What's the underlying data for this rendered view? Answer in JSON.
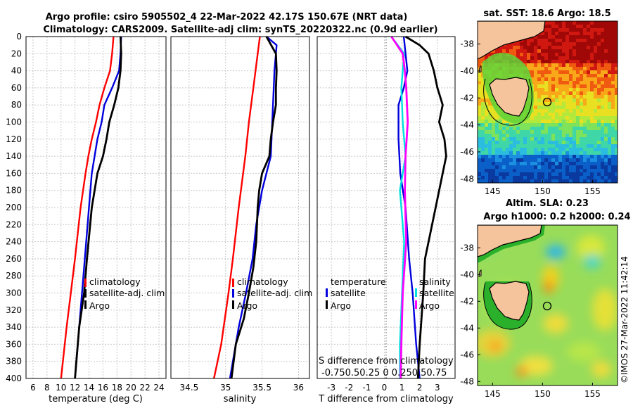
{
  "title": {
    "line1": "Argo profile: csiro 5905502_4 22-Mar-2022 42.17S 150.67E (NRT data)",
    "line2": "Climatology: CARS2009. Satellite-adj clim: synTS_20220322.nc (0.9d earlier)"
  },
  "watermark": "©IMOS 27-Mar-2022 11:42:14",
  "colors": {
    "climatology": "#ff0000",
    "satellite": "#0000dd",
    "argo": "#000000",
    "salinity_diff": "#ff00ff",
    "temperature_diff": "#00e0e0"
  },
  "chart_data": [
    {
      "id": "temperature",
      "type": "line",
      "xlabel": "temperature (deg C)",
      "xlim": [
        5,
        25
      ],
      "ylim": [
        0,
        400
      ],
      "xticks": [
        6,
        8,
        10,
        12,
        14,
        16,
        18,
        20,
        22,
        24
      ],
      "yticks": [
        0,
        20,
        40,
        60,
        80,
        100,
        120,
        140,
        160,
        180,
        200,
        220,
        240,
        260,
        280,
        300,
        320,
        340,
        360,
        380,
        400
      ],
      "legend": [
        "climatology",
        "satellite-adj. clim",
        "Argo"
      ],
      "series": [
        {
          "name": "climatology",
          "depth": [
            0,
            20,
            40,
            60,
            80,
            100,
            120,
            140,
            160,
            200,
            260,
            300,
            340,
            400
          ],
          "values": [
            17.5,
            17.3,
            17.0,
            16.2,
            15.5,
            15.0,
            14.4,
            13.9,
            13.5,
            12.8,
            12.0,
            11.4,
            10.8,
            10.0
          ]
        },
        {
          "name": "satellite-adj. clim",
          "depth": [
            0,
            20,
            40,
            60,
            80,
            100,
            120,
            140,
            160,
            200,
            260,
            300,
            340,
            400
          ],
          "values": [
            18.6,
            18.5,
            18.3,
            17.3,
            16.2,
            15.8,
            15.2,
            14.8,
            14.4,
            14.0,
            13.4,
            13.0,
            12.6,
            12.0
          ]
        },
        {
          "name": "Argo",
          "depth": [
            0,
            20,
            40,
            60,
            80,
            100,
            120,
            140,
            160,
            200,
            260,
            300,
            340,
            400
          ],
          "values": [
            18.5,
            18.6,
            18.5,
            18.2,
            17.6,
            16.9,
            16.5,
            16.0,
            15.2,
            14.4,
            13.7,
            13.3,
            12.6,
            12.0
          ]
        }
      ]
    },
    {
      "id": "salinity",
      "type": "line",
      "xlabel": "salinity",
      "xlim": [
        34.25,
        36.15
      ],
      "ylim": [
        0,
        400
      ],
      "xticks": [
        34.5,
        35,
        35.5,
        36
      ],
      "legend": [
        "climatology",
        "satellite-adj. clim",
        "Argo"
      ],
      "series": [
        {
          "name": "climatology",
          "depth": [
            0,
            20,
            40,
            60,
            100,
            140,
            200,
            260,
            300,
            360,
            400
          ],
          "values": [
            35.47,
            35.44,
            35.41,
            35.38,
            35.32,
            35.27,
            35.18,
            35.1,
            35.04,
            34.94,
            34.84
          ]
        },
        {
          "name": "satellite-adj. clim",
          "depth": [
            0,
            10,
            20,
            40,
            60,
            100,
            140,
            180,
            220,
            260,
            300,
            340,
            380,
            400
          ],
          "values": [
            35.56,
            35.7,
            35.69,
            35.67,
            35.66,
            35.64,
            35.62,
            35.5,
            35.42,
            35.37,
            35.28,
            35.18,
            35.1,
            35.06
          ]
        },
        {
          "name": "Argo",
          "depth": [
            0,
            20,
            40,
            60,
            80,
            100,
            120,
            140,
            160,
            180,
            200,
            240,
            270,
            300,
            330,
            360,
            400
          ],
          "values": [
            35.56,
            35.69,
            35.7,
            35.69,
            35.69,
            35.65,
            35.62,
            35.6,
            35.5,
            35.46,
            35.44,
            35.42,
            35.38,
            35.32,
            35.25,
            35.14,
            35.08
          ]
        }
      ]
    },
    {
      "id": "difference",
      "type": "line",
      "xlabel": "T difference from climatology",
      "xlabel_top": "S difference from climatology",
      "xlim": [
        -3.8,
        4.0
      ],
      "xlim_salinity": [
        -0.95,
        1.0
      ],
      "ylim": [
        0,
        400
      ],
      "xticks": [
        -3,
        -2,
        -1,
        0,
        1,
        2,
        3
      ],
      "xtick_labels_top": "-0.750.50.25 0  0.250.50.75",
      "legend_left_title": "temperature",
      "legend_left": [
        "satellite",
        "Argo"
      ],
      "legend_right_title": "salinity",
      "legend_right": [
        "satellite",
        "Argo"
      ],
      "series": [
        {
          "name": "temperature satellite",
          "depth": [
            0,
            20,
            40,
            60,
            80,
            120,
            160,
            200,
            260,
            300,
            360,
            400
          ],
          "values": [
            1.1,
            1.2,
            1.3,
            1.1,
            0.8,
            0.8,
            0.9,
            1.2,
            1.4,
            1.6,
            1.8,
            2.0
          ]
        },
        {
          "name": "temperature Argo",
          "depth": [
            0,
            10,
            20,
            40,
            60,
            80,
            100,
            120,
            140,
            160,
            200,
            260,
            300,
            360,
            400
          ],
          "values": [
            1.2,
            2.0,
            2.5,
            2.8,
            3.0,
            3.3,
            3.1,
            3.4,
            3.5,
            3.3,
            2.9,
            2.3,
            2.2,
            2.0,
            1.9
          ]
        },
        {
          "name": "salinity satellite",
          "depth": [
            0,
            20,
            40,
            60,
            100,
            140,
            180,
            240,
            300,
            360,
            400
          ],
          "values": [
            0.1,
            0.28,
            0.26,
            0.24,
            0.26,
            0.3,
            0.22,
            0.28,
            0.25,
            0.22,
            0.22
          ]
        },
        {
          "name": "salinity Argo",
          "depth": [
            0,
            20,
            40,
            60,
            100,
            140,
            180,
            240,
            300,
            360,
            400
          ],
          "values": [
            0.1,
            0.26,
            0.29,
            0.31,
            0.33,
            0.3,
            0.29,
            0.31,
            0.26,
            0.24,
            0.23
          ]
        }
      ]
    },
    {
      "id": "sst_map",
      "type": "heatmap",
      "title": "sat. SST: 18.6 Argo: 18.5",
      "xlim": [
        143.5,
        157.5
      ],
      "ylim": [
        -48.3,
        -36.3
      ],
      "xticks": [
        145,
        150,
        155
      ],
      "yticks": [
        -38,
        -40,
        -42,
        -44,
        -46,
        -48
      ],
      "marker": {
        "lon": 150.67,
        "lat": -42.17
      }
    },
    {
      "id": "sla_map",
      "type": "heatmap",
      "title1": "Altim. SLA: 0.23",
      "title2": "Argo h1000: 0.2 h2000: 0.24",
      "xlim": [
        143.5,
        157.5
      ],
      "ylim": [
        -48.3,
        -36.3
      ],
      "xticks": [
        145,
        150,
        155
      ],
      "yticks": [
        -38,
        -40,
        -42,
        -44,
        -46,
        -48
      ],
      "marker": {
        "lon": 150.67,
        "lat": -42.17
      }
    }
  ]
}
